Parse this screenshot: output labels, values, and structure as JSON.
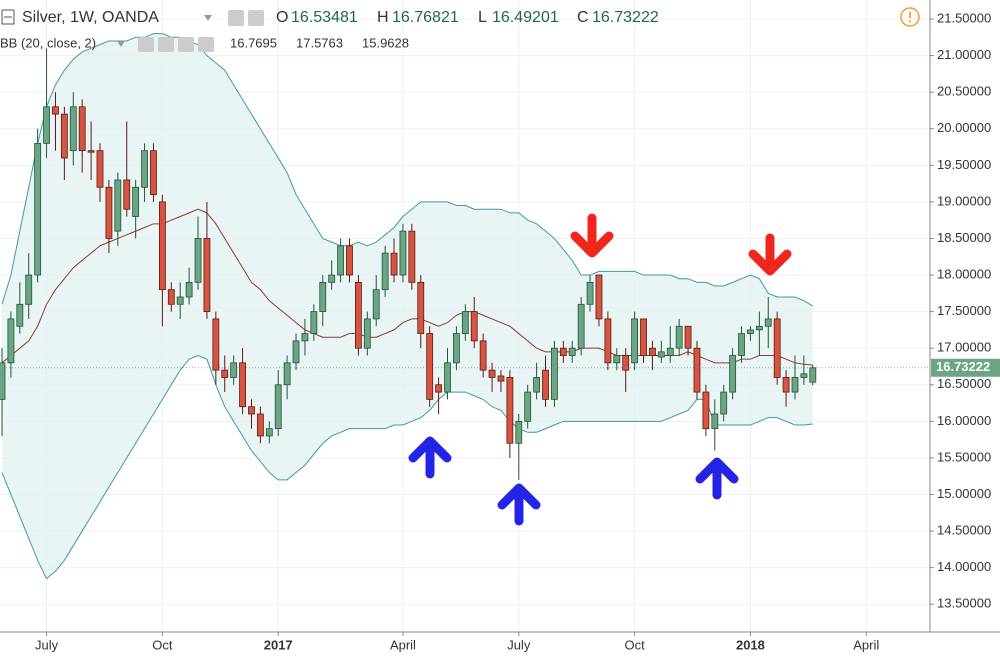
{
  "header": {
    "symbol": "Silver, 1W, OANDA",
    "ohlc_labels": [
      "O",
      "H",
      "L",
      "C"
    ],
    "indicator": "BB (20, close, 2)"
  },
  "chart_data": {
    "type": "candlestick",
    "categories": [
      null,
      null,
      null,
      null,
      null,
      "July",
      null,
      null,
      null,
      null,
      null,
      null,
      null,
      null,
      null,
      null,
      null,
      null,
      "Oct",
      null,
      null,
      null,
      null,
      null,
      null,
      null,
      null,
      null,
      null,
      null,
      null,
      "2017",
      null,
      null,
      null,
      null,
      null,
      null,
      null,
      null,
      null,
      null,
      null,
      null,
      null,
      "April",
      null,
      null,
      null,
      null,
      null,
      null,
      null,
      null,
      null,
      null,
      null,
      null,
      "July",
      null,
      null,
      null,
      null,
      null,
      null,
      null,
      null,
      null,
      null,
      null,
      null,
      "Oct",
      null,
      null,
      null,
      null,
      null,
      null,
      null,
      null,
      null,
      null,
      null,
      null,
      "2018",
      null,
      null,
      null,
      null,
      null,
      null,
      null,
      null,
      null,
      null,
      null,
      null,
      "April",
      null,
      null,
      null,
      null,
      null,
      null
    ],
    "open": [
      16.3,
      16.8,
      17.3,
      17.6,
      18.0,
      19.8,
      20.3,
      20.2,
      19.7,
      20.3,
      19.7,
      19.7,
      19.2,
      18.6,
      19.3,
      18.8,
      19.2,
      19.7,
      19.0,
      17.8,
      17.6,
      17.7,
      17.9,
      18.5,
      17.4,
      16.7,
      16.6,
      16.8,
      16.2,
      16.1,
      15.8,
      15.9,
      16.5,
      16.8,
      17.1,
      17.2,
      17.5,
      17.9,
      18.0,
      18.4,
      17.9,
      17.0,
      17.4,
      17.8,
      18.3,
      18.0,
      18.6,
      17.9,
      17.2,
      16.5,
      16.4,
      16.8,
      17.2,
      17.5,
      17.1,
      16.7,
      16.62,
      16.6,
      15.7,
      16.0,
      16.4,
      16.7,
      16.3,
      17.0,
      16.9,
      17.0,
      17.6,
      18.0,
      17.4,
      16.8,
      16.9,
      16.8,
      17.4,
      17.0,
      16.88,
      16.9,
      17.0,
      17.3,
      17.0,
      16.4,
      15.9,
      16.1,
      16.4,
      16.9,
      17.2,
      17.25,
      17.3,
      17.4,
      16.6,
      16.4,
      16.6,
      16.53481,
      null,
      null,
      null,
      null,
      null,
      null,
      null,
      null,
      null,
      null,
      null,
      null
    ],
    "high": [
      17.0,
      17.5,
      17.9,
      18.3,
      20.0,
      21.1,
      20.5,
      20.3,
      20.5,
      20.4,
      20.1,
      19.8,
      19.3,
      19.4,
      20.1,
      19.3,
      19.8,
      19.8,
      19.1,
      17.9,
      17.9,
      18.1,
      18.8,
      19.0,
      17.5,
      16.9,
      16.9,
      17.0,
      16.3,
      16.2,
      16.0,
      16.7,
      16.9,
      17.2,
      17.4,
      17.6,
      18.0,
      18.2,
      18.5,
      18.5,
      18.0,
      17.5,
      18.0,
      18.4,
      18.5,
      18.7,
      18.7,
      18.0,
      17.3,
      16.6,
      17.0,
      17.3,
      17.6,
      17.7,
      17.2,
      16.8,
      16.7,
      16.7,
      16.1,
      16.5,
      16.8,
      16.9,
      17.1,
      17.1,
      17.1,
      17.7,
      18.0,
      18.0,
      17.5,
      17.0,
      17.0,
      17.5,
      17.4,
      17.1,
      17.1,
      17.3,
      17.4,
      17.3,
      17.1,
      16.5,
      16.3,
      16.5,
      17.0,
      17.3,
      17.3,
      17.5,
      17.7,
      17.5,
      16.7,
      16.9,
      16.9,
      16.76821,
      null,
      null,
      null,
      null,
      null,
      null,
      null,
      null,
      null,
      null,
      null,
      null
    ],
    "low": [
      15.8,
      16.6,
      17.2,
      17.4,
      17.9,
      19.6,
      19.7,
      19.3,
      19.5,
      19.4,
      19.3,
      19.0,
      18.3,
      18.4,
      18.8,
      18.5,
      19.0,
      19.0,
      17.3,
      17.5,
      17.4,
      17.6,
      17.8,
      17.4,
      16.5,
      16.4,
      16.5,
      16.1,
      15.9,
      15.7,
      15.7,
      15.8,
      16.3,
      16.7,
      16.9,
      17.1,
      17.3,
      17.8,
      17.9,
      17.9,
      16.9,
      16.9,
      17.3,
      17.7,
      17.9,
      17.9,
      17.8,
      17.0,
      16.2,
      16.1,
      16.3,
      16.7,
      17.1,
      17.0,
      16.6,
      16.4,
      16.4,
      15.5,
      15.2,
      15.9,
      16.3,
      16.2,
      16.2,
      16.8,
      16.8,
      16.9,
      17.5,
      17.3,
      16.7,
      16.7,
      16.4,
      16.7,
      16.8,
      16.7,
      16.8,
      16.8,
      16.9,
      16.9,
      16.3,
      15.8,
      15.6,
      16.0,
      16.3,
      16.8,
      17.1,
      16.9,
      17.0,
      16.5,
      16.2,
      16.3,
      16.5,
      16.49201,
      null,
      null,
      null,
      null,
      null,
      null,
      null,
      null,
      null,
      null,
      null,
      null
    ],
    "close": [
      16.8,
      17.4,
      17.6,
      18.0,
      19.8,
      20.3,
      20.2,
      19.6,
      20.3,
      19.7,
      19.68,
      19.2,
      18.5,
      19.3,
      18.9,
      19.2,
      19.7,
      19.1,
      17.8,
      17.6,
      17.7,
      17.9,
      18.5,
      17.5,
      16.7,
      16.6,
      16.8,
      16.2,
      16.1,
      15.8,
      15.9,
      16.5,
      16.8,
      17.1,
      17.2,
      17.5,
      17.9,
      18.0,
      18.4,
      18.0,
      17.0,
      17.4,
      17.8,
      18.3,
      18.0,
      18.6,
      17.9,
      17.2,
      16.3,
      16.4,
      16.8,
      17.2,
      17.5,
      17.1,
      16.7,
      16.6,
      16.55,
      15.7,
      16.0,
      16.4,
      16.6,
      16.3,
      17.0,
      16.9,
      17.0,
      17.6,
      17.9,
      17.4,
      16.8,
      16.9,
      16.7,
      17.4,
      16.9,
      16.9,
      16.95,
      17.0,
      17.3,
      17.0,
      16.4,
      15.9,
      16.1,
      16.4,
      16.9,
      17.2,
      17.25,
      17.3,
      17.4,
      16.6,
      16.4,
      16.6,
      16.65,
      16.73222,
      null,
      null,
      null,
      null,
      null,
      null,
      null,
      null,
      null,
      null,
      null,
      null
    ],
    "bands": {
      "upper": [
        17.6,
        18.0,
        18.6,
        19.2,
        19.8,
        20.3,
        20.6,
        20.8,
        20.95,
        21.05,
        21.1,
        21.15,
        21.2,
        21.2,
        21.2,
        21.25,
        21.25,
        21.3,
        21.3,
        21.25,
        21.25,
        21.2,
        21.15,
        21.0,
        20.9,
        20.8,
        20.6,
        20.4,
        20.2,
        20.0,
        19.8,
        19.6,
        19.4,
        19.1,
        18.9,
        18.7,
        18.5,
        18.45,
        18.4,
        18.4,
        18.45,
        18.4,
        18.45,
        18.55,
        18.65,
        18.8,
        18.9,
        19.0,
        19.0,
        19.0,
        19.0,
        18.95,
        18.95,
        18.9,
        18.9,
        18.9,
        18.9,
        18.85,
        18.85,
        18.75,
        18.7,
        18.6,
        18.5,
        18.35,
        18.2,
        18.0,
        18.0,
        18.05,
        18.05,
        18.05,
        18.05,
        18.05,
        18.0,
        18.0,
        18.0,
        18.0,
        17.95,
        17.95,
        17.9,
        17.9,
        17.85,
        17.85,
        17.9,
        17.95,
        18.0,
        17.95,
        17.75,
        17.7,
        17.7,
        17.7,
        17.65,
        17.5763,
        null,
        null,
        null,
        null,
        null,
        null,
        null,
        null,
        null,
        null,
        null,
        null
      ],
      "middle": [
        16.8,
        16.9,
        17.0,
        17.1,
        17.3,
        17.6,
        17.8,
        17.95,
        18.1,
        18.2,
        18.3,
        18.4,
        18.45,
        18.5,
        18.55,
        18.6,
        18.65,
        18.7,
        18.7,
        18.75,
        18.8,
        18.85,
        18.9,
        18.85,
        18.7,
        18.5,
        18.3,
        18.1,
        17.9,
        17.8,
        17.65,
        17.55,
        17.45,
        17.35,
        17.25,
        17.2,
        17.15,
        17.15,
        17.15,
        17.2,
        17.2,
        17.15,
        17.15,
        17.2,
        17.25,
        17.35,
        17.4,
        17.4,
        17.35,
        17.3,
        17.35,
        17.45,
        17.5,
        17.5,
        17.45,
        17.4,
        17.35,
        17.3,
        17.2,
        17.1,
        17.0,
        16.95,
        16.95,
        16.95,
        16.95,
        17.0,
        17.0,
        17.0,
        16.95,
        16.9,
        16.9,
        16.9,
        16.9,
        16.9,
        16.9,
        16.9,
        16.9,
        16.95,
        16.9,
        16.85,
        16.8,
        16.8,
        16.8,
        16.85,
        16.85,
        16.9,
        16.9,
        16.9,
        16.85,
        16.8,
        16.78,
        16.7695,
        null,
        null,
        null,
        null,
        null,
        null,
        null,
        null,
        null,
        null,
        null,
        null
      ],
      "lower": [
        15.3,
        15.0,
        14.7,
        14.4,
        14.1,
        13.85,
        13.95,
        14.1,
        14.3,
        14.5,
        14.7,
        14.9,
        15.1,
        15.3,
        15.5,
        15.7,
        15.9,
        16.1,
        16.3,
        16.5,
        16.7,
        16.85,
        16.9,
        16.85,
        16.5,
        16.2,
        16.0,
        15.8,
        15.6,
        15.45,
        15.3,
        15.2,
        15.2,
        15.3,
        15.4,
        15.55,
        15.7,
        15.8,
        15.85,
        15.9,
        15.9,
        15.9,
        15.9,
        15.9,
        15.95,
        15.95,
        16.0,
        16.05,
        16.15,
        16.3,
        16.4,
        16.4,
        16.4,
        16.35,
        16.3,
        16.2,
        16.15,
        16.0,
        15.9,
        15.85,
        15.85,
        15.9,
        15.95,
        16.0,
        16.0,
        16.0,
        16.0,
        16.0,
        16.0,
        16.0,
        16.0,
        16.0,
        16.0,
        16.0,
        16.0,
        16.05,
        16.1,
        16.15,
        16.3,
        16.3,
        15.95,
        15.95,
        15.95,
        15.95,
        15.95,
        16.0,
        16.05,
        16.05,
        16.0,
        15.95,
        15.95,
        15.9628,
        null,
        null,
        null,
        null,
        null,
        null,
        null,
        null,
        null,
        null,
        null,
        null
      ],
      "band_color": "#3e9c9c",
      "middle_color": "#8b3a3a",
      "fill": "#e3f1f1"
    },
    "up_color": "#6ba583",
    "up_border": "#225437",
    "down_color": "#d75442",
    "down_border": "#5b1a13",
    "last_color": "#6ba583",
    "ylim": [
      13.12,
      21.76
    ],
    "yticks": [
      {
        "value": 13.5,
        "label": "13.50000"
      },
      {
        "value": 14,
        "label": "14.00000"
      },
      {
        "value": 14.5,
        "label": "14.50000"
      },
      {
        "value": 15,
        "label": "15.00000"
      },
      {
        "value": 15.5,
        "label": "15.50000"
      },
      {
        "value": 16,
        "label": "16.00000"
      },
      {
        "value": 16.5,
        "label": "16.50000"
      },
      {
        "value": 17,
        "label": "17.00000"
      },
      {
        "value": 17.5,
        "label": "17.50000"
      },
      {
        "value": 18,
        "label": "18.00000"
      },
      {
        "value": 18.5,
        "label": "18.50000"
      },
      {
        "value": 19,
        "label": "19.00000"
      },
      {
        "value": 19.5,
        "label": "19.50000"
      },
      {
        "value": 20,
        "label": "20.00000"
      },
      {
        "value": 20.5,
        "label": "20.50000"
      },
      {
        "value": 21,
        "label": "21.00000"
      },
      {
        "value": 21.5,
        "label": "21.50000"
      }
    ],
    "grid": true
  }
}
